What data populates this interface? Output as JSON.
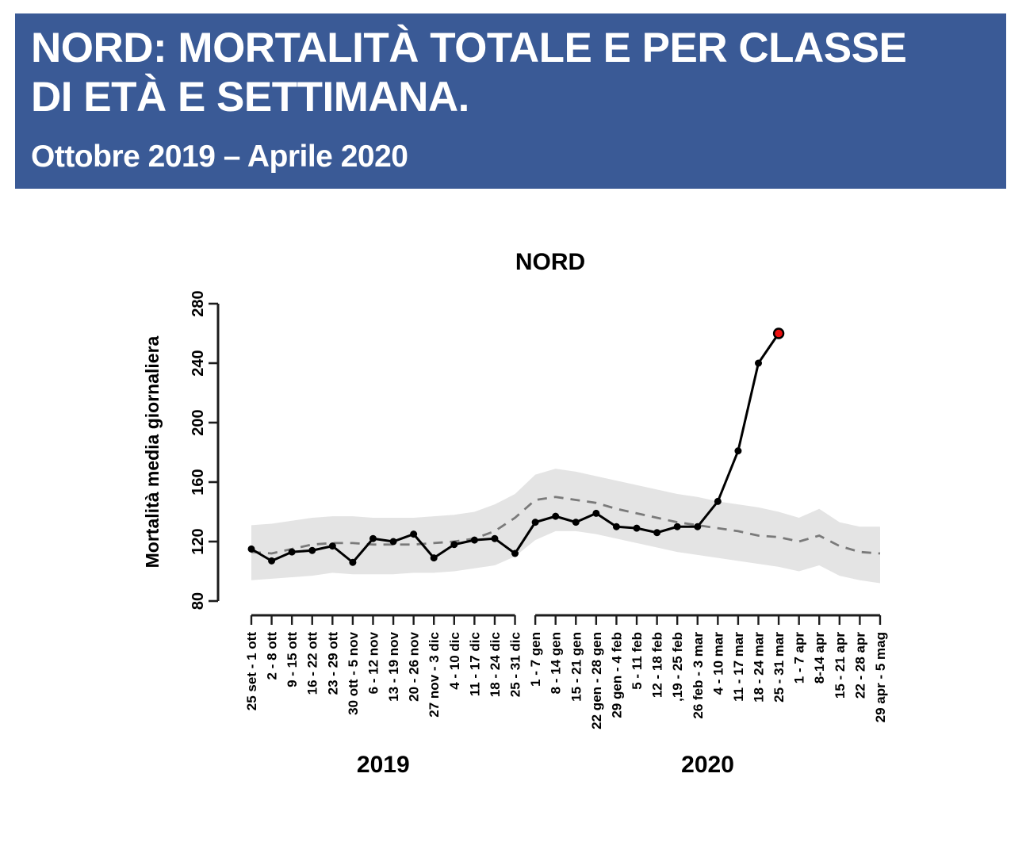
{
  "banner": {
    "title_line1": "NORD: MORTALITÀ TOTALE E PER CLASSE",
    "title_line2": "DI ETÀ E SETTIMANA.",
    "subtitle": "Ottobre 2019 – Aprile 2020",
    "background": "#3a5a96",
    "text_color": "#ffffff"
  },
  "chart_data": {
    "type": "line",
    "title": "NORD",
    "ylabel": "Mortalità media giornaliera",
    "ylim": [
      80,
      280
    ],
    "yticks": [
      80,
      120,
      160,
      200,
      240,
      280
    ],
    "categories": [
      "25 set - 1 ott",
      "2 - 8 ott",
      "9 - 15 ott",
      "16 - 22 ott",
      "23 - 29 ott",
      "30 ott - 5 nov",
      "6 - 12 nov",
      "13 - 19 nov",
      "20 - 26 nov",
      "27 nov - 3 dic",
      "4 - 10 dic",
      "11 - 17 dic",
      "18 - 24 dic",
      "25 - 31 dic",
      "1 - 7 gen",
      "8 - 14 gen",
      "15 - 21 gen",
      "22 gen - 28 gen",
      "29 gen - 4 feb",
      "5 - 11 feb",
      "12 - 18 feb",
      ",19 - 25 feb",
      "26 feb - 3 mar",
      "4 - 10 mar",
      "11 - 17 mar",
      "18 - 24 mar",
      "25 - 31 mar",
      "1 - 7 apr",
      "8-14 apr",
      "15 - 21 apr",
      "22 - 28 apr",
      "29 apr - 5 mag"
    ],
    "year_groups": [
      {
        "label": "2019",
        "from": 0,
        "to": 13
      },
      {
        "label": "2020",
        "from": 14,
        "to": 31
      }
    ],
    "series": [
      {
        "name": "observed",
        "type": "line-markers",
        "color": "#000000",
        "values": [
          115,
          107,
          113,
          114,
          117,
          106,
          122,
          120,
          125,
          109,
          118,
          121,
          122,
          112,
          133,
          137,
          133,
          139,
          130,
          129,
          126,
          130,
          130,
          147,
          181,
          240,
          260,
          null,
          null,
          null,
          null,
          null
        ]
      },
      {
        "name": "expected",
        "type": "dashed-line",
        "color": "#7a7a7a",
        "values": [
          113,
          112,
          115,
          118,
          119,
          119,
          118,
          118,
          118,
          119,
          120,
          122,
          127,
          136,
          148,
          150,
          148,
          146,
          142,
          139,
          136,
          133,
          131,
          129,
          127,
          124,
          123,
          120,
          124,
          117,
          113,
          112
        ]
      }
    ],
    "band": {
      "color": "#e4e4e4",
      "upper": [
        131,
        132,
        134,
        136,
        137,
        137,
        136,
        136,
        136,
        137,
        138,
        140,
        145,
        152,
        165,
        169,
        167,
        164,
        161,
        158,
        155,
        152,
        150,
        147,
        145,
        143,
        140,
        136,
        142,
        133,
        130,
        130
      ],
      "lower": [
        94,
        95,
        96,
        97,
        99,
        98,
        98,
        98,
        99,
        99,
        100,
        102,
        104,
        110,
        121,
        127,
        127,
        125,
        122,
        119,
        116,
        113,
        111,
        109,
        107,
        105,
        103,
        100,
        104,
        97,
        94,
        92
      ]
    },
    "highlight": {
      "index": 26,
      "color": "#ed1111"
    }
  }
}
